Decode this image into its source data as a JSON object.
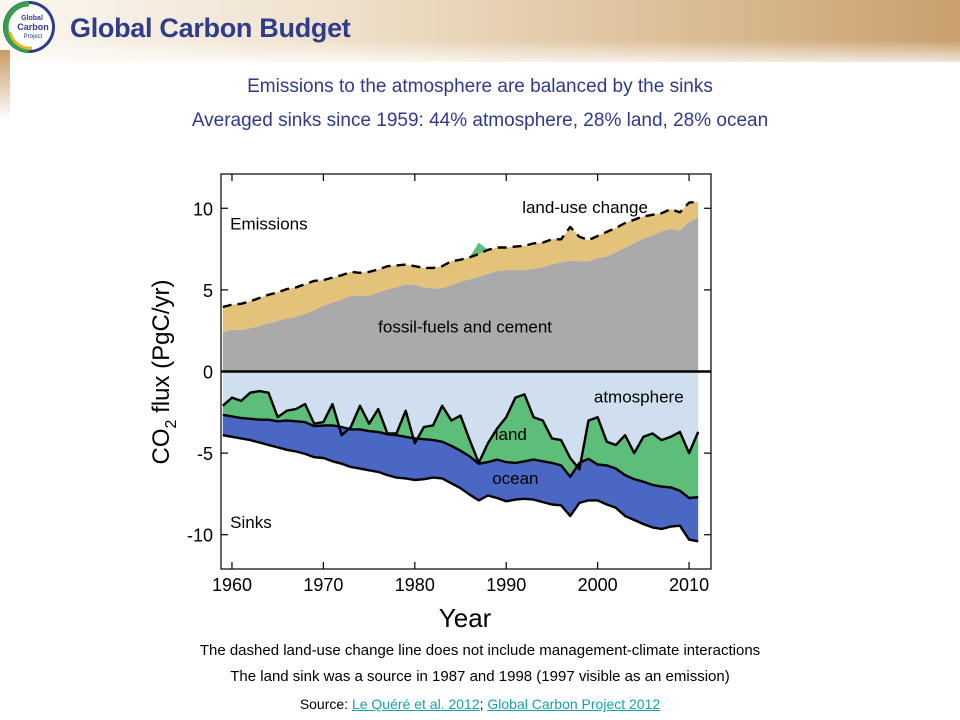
{
  "header": {
    "logo_text": "Global Carbon Project",
    "title": "Global Carbon Budget"
  },
  "subtitle": {
    "line1": "Emissions to the atmosphere are balanced by the sinks",
    "line2": "Averaged sinks since 1959: 44% atmosphere, 28% land, 28% ocean"
  },
  "notes": {
    "line1": "The dashed land-use change line does not include management-climate interactions",
    "line2": "The land sink was a source in 1987 and 1998 (1997 visible as an emission)"
  },
  "source": {
    "prefix": "Source: ",
    "link1": "Le Quéré et al. 2012",
    "separator": "; ",
    "link2": "Global Carbon Project 2012"
  },
  "colors": {
    "title": "#2f3c8c",
    "fossil": "#aaaaaa",
    "land_use": "#e3c279",
    "atmosphere": "#cfdfef",
    "land": "#5dbe7a",
    "ocean": "#4b67c4",
    "link": "#14a3a8"
  },
  "chart_data": {
    "type": "area",
    "xlabel": "Year",
    "ylabel": "CO2 flux (PgC/yr)",
    "xlim": [
      1958.8,
      2012.4
    ],
    "ylim": [
      -12.1,
      12.1
    ],
    "xticks": [
      1960,
      1970,
      1980,
      1990,
      2000,
      2010
    ],
    "yticks": [
      10,
      5,
      0,
      -5,
      -10
    ],
    "annotations": {
      "emissions": "Emissions",
      "sinks": "Sinks",
      "fossil": "fossil-fuels and cement",
      "land_use": "land-use change",
      "atmosphere": "atmosphere",
      "land": "land",
      "ocean": "ocean"
    },
    "sources": {
      "years": [
        1959,
        1960,
        1961,
        1962,
        1963,
        1964,
        1965,
        1966,
        1967,
        1968,
        1969,
        1970,
        1971,
        1972,
        1973,
        1974,
        1975,
        1976,
        1977,
        1978,
        1979,
        1980,
        1981,
        1982,
        1983,
        1984,
        1985,
        1986,
        1987,
        1988,
        1989,
        1990,
        1991,
        1992,
        1993,
        1994,
        1995,
        1996,
        1997,
        1998,
        1999,
        2000,
        2001,
        2002,
        2003,
        2004,
        2005,
        2006,
        2007,
        2008,
        2009,
        2010,
        2011
      ],
      "fossil": [
        2.4,
        2.55,
        2.55,
        2.65,
        2.8,
        2.95,
        3.1,
        3.25,
        3.35,
        3.55,
        3.75,
        4.05,
        4.2,
        4.4,
        4.65,
        4.65,
        4.6,
        4.85,
        5.05,
        5.15,
        5.35,
        5.3,
        5.15,
        5.1,
        5.1,
        5.3,
        5.5,
        5.65,
        5.8,
        6.0,
        6.15,
        6.2,
        6.25,
        6.2,
        6.3,
        6.4,
        6.55,
        6.7,
        6.8,
        6.75,
        6.75,
        6.95,
        7.05,
        7.3,
        7.6,
        7.85,
        8.15,
        8.35,
        8.6,
        8.75,
        8.65,
        9.15,
        9.45
      ],
      "land_use_top": [
        3.95,
        4.1,
        4.15,
        4.3,
        4.5,
        4.7,
        4.85,
        5.05,
        5.15,
        5.35,
        5.55,
        5.6,
        5.75,
        5.9,
        6.1,
        6.05,
        6.1,
        6.25,
        6.45,
        6.5,
        6.55,
        6.45,
        6.35,
        6.35,
        6.45,
        6.75,
        6.85,
        7.0,
        7.2,
        7.45,
        7.6,
        7.6,
        7.65,
        7.7,
        7.85,
        7.9,
        8.1,
        8.1,
        8.85,
        8.25,
        8.05,
        8.3,
        8.55,
        8.8,
        9.1,
        9.3,
        9.5,
        9.6,
        9.7,
        9.95,
        9.75,
        10.35,
        10.4
      ],
      "land_use_bump_1987": 7.9
    },
    "sinks": {
      "years": [
        1959,
        1960,
        1961,
        1962,
        1963,
        1964,
        1965,
        1966,
        1967,
        1968,
        1969,
        1970,
        1971,
        1972,
        1973,
        1974,
        1975,
        1976,
        1977,
        1978,
        1979,
        1980,
        1981,
        1982,
        1983,
        1984,
        1985,
        1986,
        1987,
        1988,
        1989,
        1990,
        1991,
        1992,
        1993,
        1994,
        1995,
        1996,
        1997,
        1998,
        1999,
        2000,
        2001,
        2002,
        2003,
        2004,
        2005,
        2006,
        2007,
        2008,
        2009,
        2010,
        2011
      ],
      "atmosphere_bottom": [
        -2.1,
        -1.6,
        -1.8,
        -1.3,
        -1.2,
        -1.3,
        -2.8,
        -2.4,
        -2.3,
        -2.0,
        -3.2,
        -3.1,
        -2.0,
        -3.9,
        -3.4,
        -2.1,
        -3.2,
        -2.3,
        -3.8,
        -3.8,
        -2.4,
        -4.4,
        -3.4,
        -3.3,
        -2.1,
        -3.0,
        -2.7,
        -4.2,
        -5.6,
        -4.4,
        -3.5,
        -2.8,
        -1.6,
        -1.4,
        -2.8,
        -3.0,
        -4.1,
        -4.2,
        -5.3,
        -6.0,
        -3.0,
        -2.8,
        -4.3,
        -4.5,
        -3.9,
        -5.0,
        -4.0,
        -3.8,
        -4.2,
        -4.0,
        -3.7,
        -5.0,
        -3.7
      ],
      "land_bottom": [
        -2.65,
        -2.75,
        -2.85,
        -2.9,
        -2.95,
        -2.95,
        -3.05,
        -3.0,
        -3.05,
        -3.1,
        -3.35,
        -3.3,
        -3.3,
        -3.4,
        -3.55,
        -3.55,
        -3.65,
        -3.7,
        -3.85,
        -3.9,
        -4.0,
        -4.1,
        -4.15,
        -4.2,
        -4.3,
        -4.55,
        -4.85,
        -5.2,
        -5.65,
        -5.55,
        -5.4,
        -5.55,
        -5.6,
        -5.5,
        -5.4,
        -5.5,
        -5.6,
        -5.75,
        -6.45,
        -5.6,
        -5.35,
        -5.7,
        -5.75,
        -5.95,
        -6.35,
        -6.6,
        -6.75,
        -6.95,
        -7.05,
        -7.1,
        -7.3,
        -7.75,
        -7.7
      ],
      "ocean_bottom": [
        -3.9,
        -4.0,
        -4.1,
        -4.2,
        -4.35,
        -4.5,
        -4.65,
        -4.8,
        -4.9,
        -5.05,
        -5.25,
        -5.3,
        -5.5,
        -5.65,
        -5.85,
        -5.95,
        -6.05,
        -6.15,
        -6.35,
        -6.5,
        -6.55,
        -6.65,
        -6.6,
        -6.5,
        -6.55,
        -6.85,
        -7.15,
        -7.55,
        -7.9,
        -7.6,
        -7.75,
        -7.95,
        -7.85,
        -7.8,
        -7.85,
        -8.0,
        -8.15,
        -8.2,
        -8.85,
        -8.05,
        -7.9,
        -7.9,
        -8.15,
        -8.35,
        -8.85,
        -9.1,
        -9.35,
        -9.55,
        -9.65,
        -9.5,
        -9.45,
        -10.3,
        -10.4
      ]
    }
  }
}
